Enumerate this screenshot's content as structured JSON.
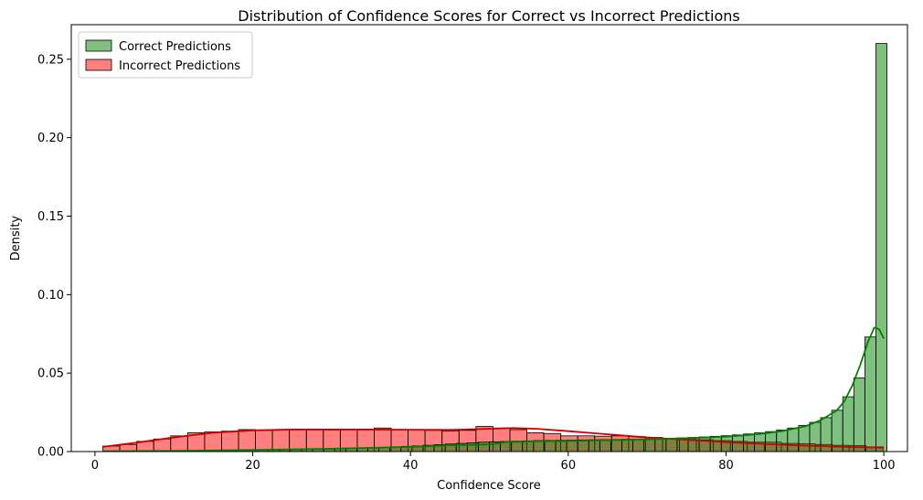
{
  "chart_data": {
    "type": "histogram",
    "title": "Distribution of Confidence Scores for Correct vs Incorrect Predictions",
    "xlabel": "Confidence Score",
    "ylabel": "Density",
    "xlim": [
      -3,
      103
    ],
    "ylim": [
      0,
      0.272
    ],
    "xticks": [
      0,
      20,
      40,
      60,
      80,
      100
    ],
    "yticks": [
      0.0,
      0.05,
      0.1,
      0.15,
      0.2,
      0.25
    ],
    "ytick_format": 2,
    "legend": {
      "placement": "top-left"
    },
    "series": [
      {
        "name": "Correct Predictions",
        "color": "#008000",
        "fill_alpha": 0.5,
        "bin_start": 1,
        "bin_width": 1.4,
        "bars": [],
        "kde": {
          "x": [],
          "y": []
        }
      },
      {
        "name": "Incorrect Predictions",
        "color": "#ff0000",
        "line_color": "#cc0000",
        "fill_alpha": 0.5,
        "bin_start": 1,
        "bin_width": 2.15,
        "bars": [],
        "kde": {
          "x": [],
          "y": []
        }
      }
    ]
  }
}
